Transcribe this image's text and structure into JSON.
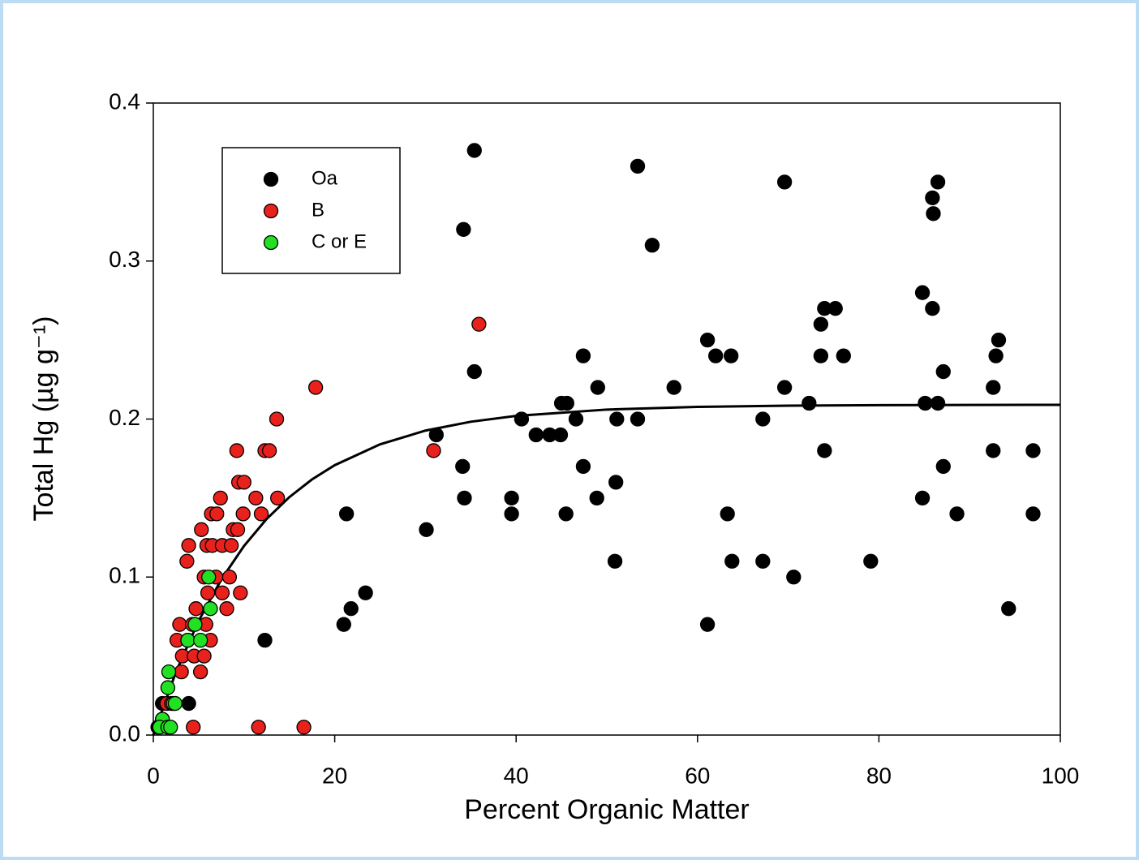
{
  "chart_data": {
    "type": "scatter",
    "xlabel": "Percent Organic Matter",
    "ylabel": "Total Hg (µg g⁻¹)",
    "xlim": [
      0,
      100
    ],
    "xticks": [
      0,
      20,
      40,
      60,
      80,
      100
    ],
    "ylim": [
      0,
      0.4
    ],
    "yticks": [
      {
        "value": 0,
        "label": "0.0"
      },
      0.1,
      0.2,
      0.3,
      0.4
    ],
    "series": [
      {
        "name": "Oa",
        "color": "#000000",
        "x": [
          35.4,
          53.4,
          69.6,
          86.5,
          85.9,
          86.0,
          34.2,
          55.0,
          84.8,
          74.0,
          75.2,
          85.9,
          73.6,
          61.1,
          93.2,
          62.0,
          63.7,
          47.4,
          73.6,
          76.1,
          92.9,
          35.4,
          87.1,
          49.0,
          57.4,
          69.6,
          92.6,
          45.0,
          45.6,
          72.3,
          85.1,
          86.5,
          31.2,
          42.2,
          43.7,
          44.9,
          40.6,
          46.6,
          51.1,
          53.4,
          67.2,
          34.1,
          47.4,
          74.0,
          92.6,
          97.0,
          87.1,
          34.3,
          39.5,
          48.9,
          84.8,
          51.0,
          21.3,
          39.5,
          45.5,
          63.3,
          88.6,
          97.0,
          30.1,
          50.9,
          63.8,
          67.2,
          79.1,
          70.6,
          21.8,
          23.4,
          94.3,
          21.0,
          61.1,
          12.3,
          3.9,
          1.0,
          0.5
        ],
        "values": [
          0.37,
          0.36,
          0.35,
          0.35,
          0.34,
          0.33,
          0.32,
          0.31,
          0.28,
          0.27,
          0.27,
          0.27,
          0.26,
          0.25,
          0.25,
          0.24,
          0.24,
          0.24,
          0.24,
          0.24,
          0.24,
          0.23,
          0.23,
          0.22,
          0.22,
          0.22,
          0.22,
          0.21,
          0.21,
          0.21,
          0.21,
          0.21,
          0.19,
          0.19,
          0.19,
          0.19,
          0.2,
          0.2,
          0.2,
          0.2,
          0.2,
          0.17,
          0.17,
          0.18,
          0.18,
          0.18,
          0.17,
          0.15,
          0.15,
          0.15,
          0.15,
          0.16,
          0.14,
          0.14,
          0.14,
          0.14,
          0.14,
          0.14,
          0.13,
          0.11,
          0.11,
          0.11,
          0.11,
          0.1,
          0.08,
          0.09,
          0.08,
          0.07,
          0.07,
          0.06,
          0.02,
          0.02,
          0.005
        ]
      },
      {
        "name": "B",
        "color": "#e8211c",
        "x": [
          35.9,
          17.9,
          13.6,
          12.3,
          12.8,
          9.2,
          30.9,
          9.4,
          10.0,
          11.3,
          13.7,
          7.4,
          6.4,
          7.0,
          9.9,
          11.9,
          8.8,
          9.3,
          5.3,
          3.9,
          5.9,
          6.5,
          7.6,
          8.6,
          3.7,
          5.6,
          6.9,
          8.4,
          6.0,
          7.6,
          9.6,
          4.7,
          8.1,
          5.8,
          2.9,
          4.3,
          2.6,
          3.8,
          6.3,
          3.2,
          4.5,
          5.6,
          3.1,
          5.2,
          1.5,
          2.0,
          1.0,
          4.4,
          11.6,
          16.6
        ],
        "values": [
          0.26,
          0.22,
          0.2,
          0.18,
          0.18,
          0.18,
          0.18,
          0.16,
          0.16,
          0.15,
          0.15,
          0.15,
          0.14,
          0.14,
          0.14,
          0.14,
          0.13,
          0.13,
          0.13,
          0.12,
          0.12,
          0.12,
          0.12,
          0.12,
          0.11,
          0.1,
          0.1,
          0.1,
          0.09,
          0.09,
          0.09,
          0.08,
          0.08,
          0.07,
          0.07,
          0.07,
          0.06,
          0.06,
          0.06,
          0.05,
          0.05,
          0.05,
          0.04,
          0.04,
          0.02,
          0.02,
          0.01,
          0.005,
          0.005,
          0.005
        ]
      },
      {
        "name": "C or E",
        "color": "#22e022",
        "x": [
          6.1,
          6.3,
          4.6,
          3.8,
          5.2,
          1.7,
          1.6,
          2.2,
          2.4,
          1.0,
          0.7,
          1.6,
          1.9
        ],
        "values": [
          0.1,
          0.08,
          0.07,
          0.06,
          0.06,
          0.04,
          0.03,
          0.02,
          0.02,
          0.01,
          0.005,
          0.005,
          0.005
        ]
      }
    ],
    "curve": {
      "color": "#000000",
      "x": [
        0,
        2.5,
        5,
        7.5,
        10,
        12.5,
        15,
        17.5,
        20,
        25,
        30,
        35,
        40,
        50,
        60,
        70,
        80,
        90,
        100
      ],
      "values": [
        0,
        0.04,
        0.0723,
        0.0985,
        0.1197,
        0.1368,
        0.1506,
        0.1618,
        0.1708,
        0.184,
        0.1927,
        0.1983,
        0.202,
        0.206,
        0.2077,
        0.2085,
        0.2088,
        0.2089,
        0.209
      ]
    },
    "legend": "upper left"
  }
}
